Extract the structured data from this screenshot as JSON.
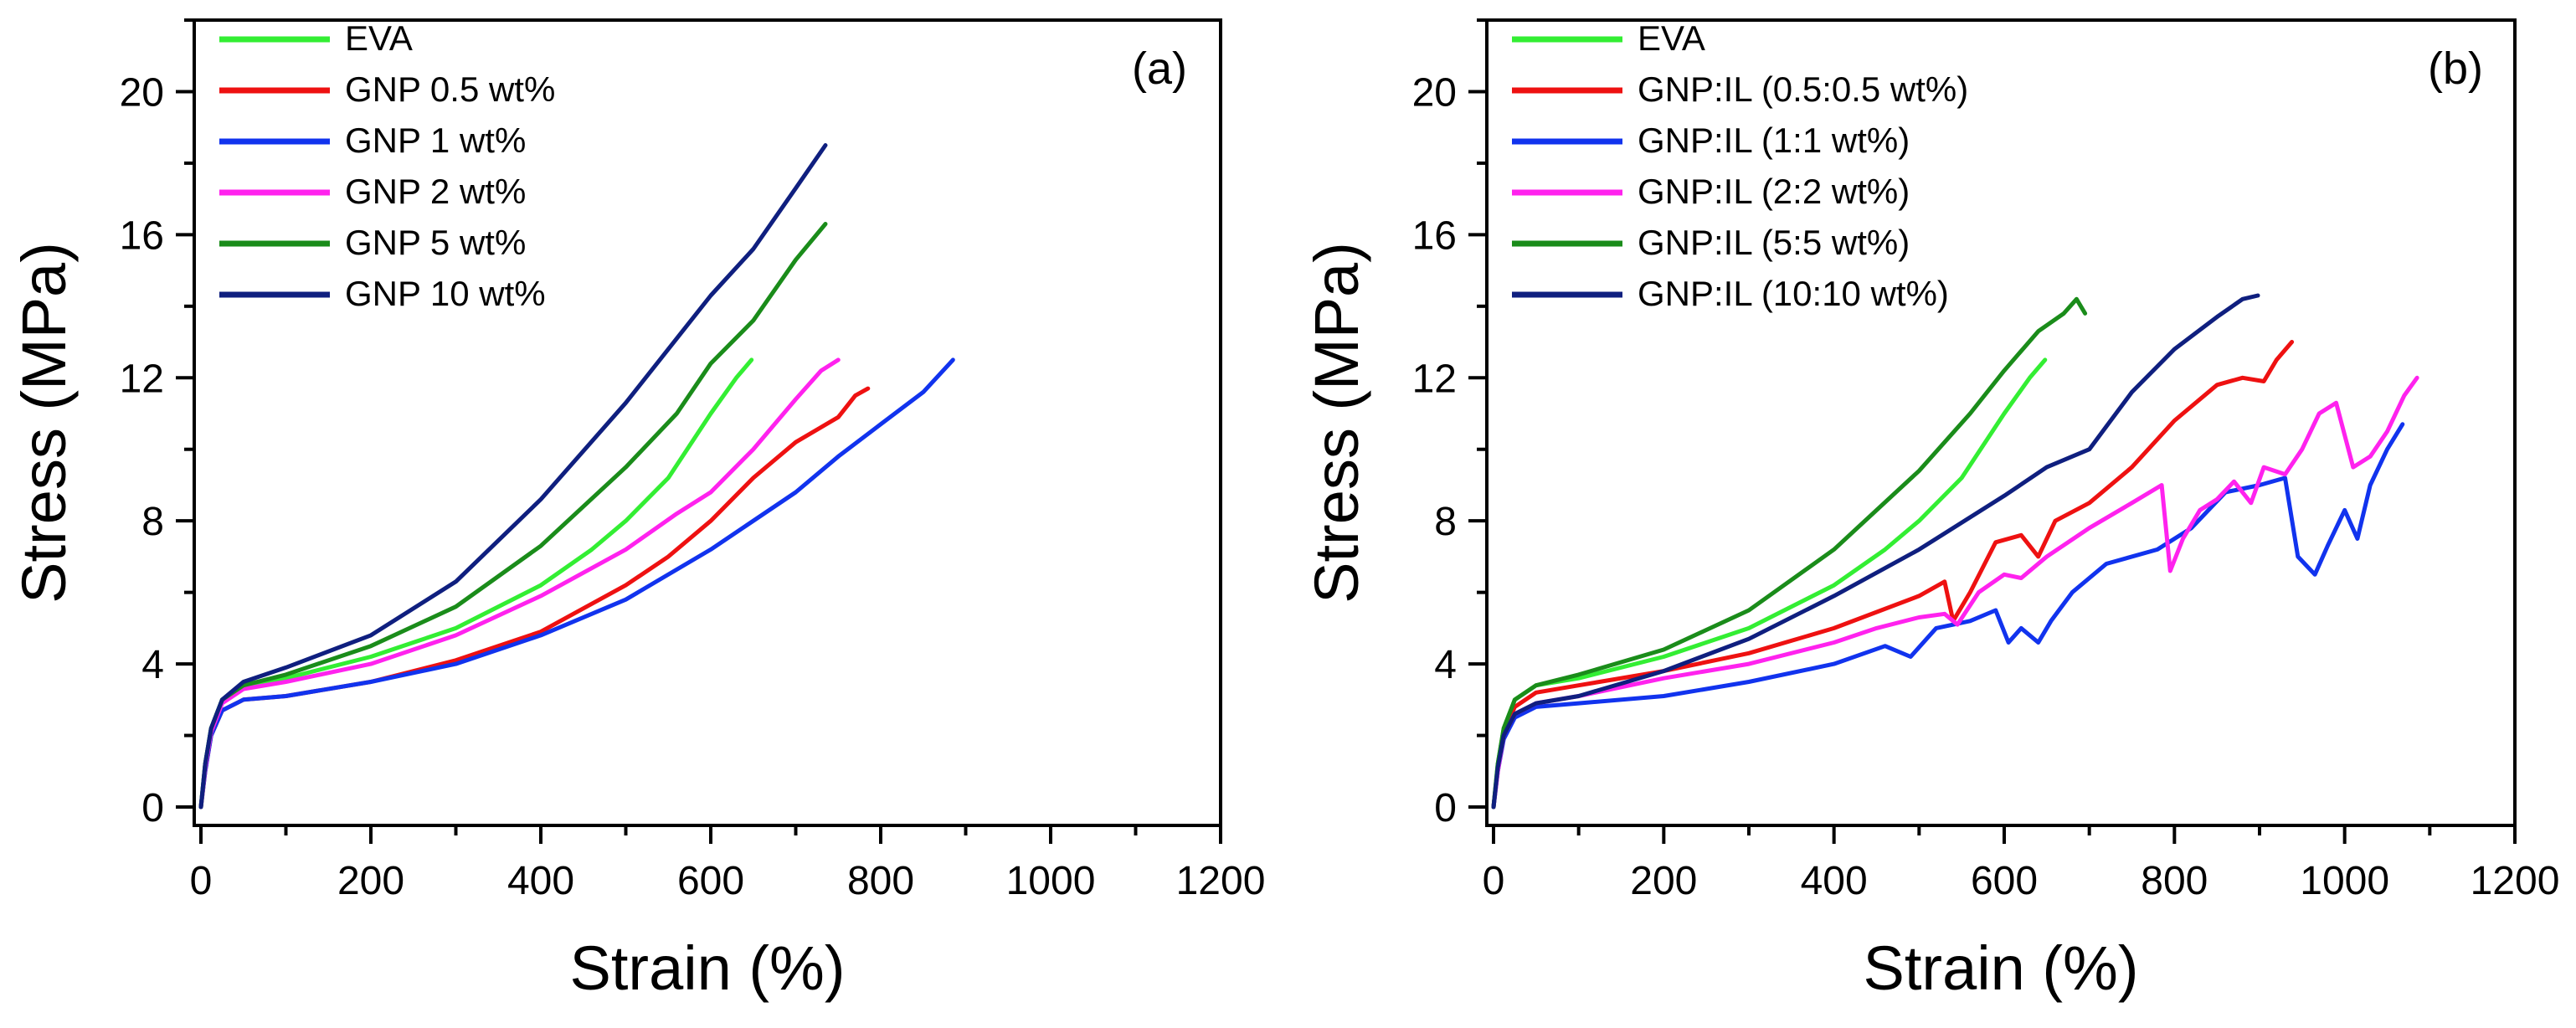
{
  "chart_data": [
    {
      "type": "line",
      "panel": "(a)",
      "xlabel": "Strain (%)",
      "ylabel": "Stress (MPa)",
      "xlim": [
        0,
        1200
      ],
      "ylim": [
        0,
        22
      ],
      "xticks": [
        0,
        200,
        400,
        600,
        800,
        1000,
        1200
      ],
      "yticks": [
        0,
        4,
        8,
        12,
        16,
        20
      ],
      "legend_position": "top-left",
      "series": [
        {
          "name": "EVA",
          "color": "#33ee33",
          "points": [
            [
              0,
              0
            ],
            [
              5,
              1.2
            ],
            [
              12,
              2.2
            ],
            [
              25,
              3.0
            ],
            [
              50,
              3.4
            ],
            [
              100,
              3.6
            ],
            [
              200,
              4.2
            ],
            [
              300,
              5.0
            ],
            [
              400,
              6.2
            ],
            [
              460,
              7.2
            ],
            [
              500,
              8.0
            ],
            [
              550,
              9.2
            ],
            [
              600,
              11.0
            ],
            [
              630,
              12.0
            ],
            [
              648,
              12.5
            ]
          ]
        },
        {
          "name": "GNP 0.5 wt%",
          "color": "#ee1111",
          "points": [
            [
              0,
              0
            ],
            [
              5,
              1.0
            ],
            [
              12,
              2.0
            ],
            [
              25,
              2.7
            ],
            [
              50,
              3.0
            ],
            [
              100,
              3.1
            ],
            [
              200,
              3.5
            ],
            [
              300,
              4.1
            ],
            [
              400,
              4.9
            ],
            [
              500,
              6.2
            ],
            [
              550,
              7.0
            ],
            [
              600,
              8.0
            ],
            [
              650,
              9.2
            ],
            [
              700,
              10.2
            ],
            [
              750,
              10.9
            ],
            [
              770,
              11.5
            ],
            [
              785,
              11.7
            ]
          ]
        },
        {
          "name": "GNP 1 wt%",
          "color": "#1133ee",
          "points": [
            [
              0,
              0
            ],
            [
              5,
              1.0
            ],
            [
              12,
              2.0
            ],
            [
              25,
              2.7
            ],
            [
              50,
              3.0
            ],
            [
              100,
              3.1
            ],
            [
              200,
              3.5
            ],
            [
              300,
              4.0
            ],
            [
              400,
              4.8
            ],
            [
              500,
              5.8
            ],
            [
              600,
              7.2
            ],
            [
              700,
              8.8
            ],
            [
              750,
              9.8
            ],
            [
              800,
              10.7
            ],
            [
              850,
              11.6
            ],
            [
              885,
              12.5
            ]
          ]
        },
        {
          "name": "GNP 2 wt%",
          "color": "#ff22ee",
          "points": [
            [
              0,
              0
            ],
            [
              5,
              1.1
            ],
            [
              12,
              2.1
            ],
            [
              25,
              2.9
            ],
            [
              50,
              3.3
            ],
            [
              100,
              3.5
            ],
            [
              200,
              4.0
            ],
            [
              300,
              4.8
            ],
            [
              400,
              5.9
            ],
            [
              500,
              7.2
            ],
            [
              560,
              8.2
            ],
            [
              600,
              8.8
            ],
            [
              650,
              10.0
            ],
            [
              700,
              11.4
            ],
            [
              730,
              12.2
            ],
            [
              750,
              12.5
            ]
          ]
        },
        {
          "name": "GNP 5 wt%",
          "color": "#1a8c1a",
          "points": [
            [
              0,
              0
            ],
            [
              5,
              1.2
            ],
            [
              12,
              2.2
            ],
            [
              25,
              3.0
            ],
            [
              50,
              3.4
            ],
            [
              100,
              3.7
            ],
            [
              200,
              4.5
            ],
            [
              300,
              5.6
            ],
            [
              400,
              7.3
            ],
            [
              500,
              9.5
            ],
            [
              560,
              11.0
            ],
            [
              600,
              12.4
            ],
            [
              650,
              13.6
            ],
            [
              700,
              15.3
            ],
            [
              735,
              16.3
            ]
          ]
        },
        {
          "name": "GNP 10 wt%",
          "color": "#0f1f7f",
          "points": [
            [
              0,
              0
            ],
            [
              5,
              1.2
            ],
            [
              12,
              2.2
            ],
            [
              25,
              3.0
            ],
            [
              50,
              3.5
            ],
            [
              100,
              3.9
            ],
            [
              200,
              4.8
            ],
            [
              300,
              6.3
            ],
            [
              400,
              8.6
            ],
            [
              500,
              11.3
            ],
            [
              600,
              14.3
            ],
            [
              650,
              15.6
            ],
            [
              700,
              17.3
            ],
            [
              735,
              18.5
            ]
          ]
        }
      ]
    },
    {
      "type": "line",
      "panel": "(b)",
      "xlabel": "Strain (%)",
      "ylabel": "Stress (MPa)",
      "xlim": [
        0,
        1200
      ],
      "ylim": [
        0,
        22
      ],
      "xticks": [
        0,
        200,
        400,
        600,
        800,
        1000,
        1200
      ],
      "yticks": [
        0,
        4,
        8,
        12,
        16,
        20
      ],
      "legend_position": "top-left",
      "series": [
        {
          "name": "EVA",
          "color": "#33ee33",
          "points": [
            [
              0,
              0
            ],
            [
              5,
              1.2
            ],
            [
              12,
              2.2
            ],
            [
              25,
              3.0
            ],
            [
              50,
              3.4
            ],
            [
              100,
              3.6
            ],
            [
              200,
              4.2
            ],
            [
              300,
              5.0
            ],
            [
              400,
              6.2
            ],
            [
              460,
              7.2
            ],
            [
              500,
              8.0
            ],
            [
              550,
              9.2
            ],
            [
              600,
              11.0
            ],
            [
              630,
              12.0
            ],
            [
              648,
              12.5
            ]
          ]
        },
        {
          "name": "GNP:IL (0.5:0.5 wt%)",
          "color": "#ee1111",
          "points": [
            [
              0,
              0
            ],
            [
              5,
              1.1
            ],
            [
              12,
              2.1
            ],
            [
              25,
              2.8
            ],
            [
              50,
              3.2
            ],
            [
              100,
              3.4
            ],
            [
              200,
              3.8
            ],
            [
              300,
              4.3
            ],
            [
              400,
              5.0
            ],
            [
              500,
              5.9
            ],
            [
              530,
              6.3
            ],
            [
              540,
              5.2
            ],
            [
              560,
              6.0
            ],
            [
              590,
              7.4
            ],
            [
              620,
              7.6
            ],
            [
              640,
              7.0
            ],
            [
              660,
              8.0
            ],
            [
              700,
              8.5
            ],
            [
              750,
              9.5
            ],
            [
              800,
              10.8
            ],
            [
              850,
              11.8
            ],
            [
              880,
              12.0
            ],
            [
              905,
              11.9
            ],
            [
              920,
              12.5
            ],
            [
              938,
              13.0
            ]
          ]
        },
        {
          "name": "GNP:IL (1:1 wt%)",
          "color": "#1133ee",
          "points": [
            [
              0,
              0
            ],
            [
              5,
              1.0
            ],
            [
              12,
              1.9
            ],
            [
              25,
              2.5
            ],
            [
              50,
              2.8
            ],
            [
              100,
              2.9
            ],
            [
              200,
              3.1
            ],
            [
              300,
              3.5
            ],
            [
              400,
              4.0
            ],
            [
              460,
              4.5
            ],
            [
              490,
              4.2
            ],
            [
              520,
              5.0
            ],
            [
              560,
              5.2
            ],
            [
              590,
              5.5
            ],
            [
              605,
              4.6
            ],
            [
              620,
              5.0
            ],
            [
              640,
              4.6
            ],
            [
              655,
              5.2
            ],
            [
              680,
              6.0
            ],
            [
              720,
              6.8
            ],
            [
              780,
              7.2
            ],
            [
              820,
              7.8
            ],
            [
              860,
              8.8
            ],
            [
              900,
              9.0
            ],
            [
              930,
              9.2
            ],
            [
              945,
              7.0
            ],
            [
              965,
              6.5
            ],
            [
              980,
              7.3
            ],
            [
              1000,
              8.3
            ],
            [
              1015,
              7.5
            ],
            [
              1030,
              9.0
            ],
            [
              1050,
              10.0
            ],
            [
              1068,
              10.7
            ]
          ]
        },
        {
          "name": "GNP:IL (2:2 wt%)",
          "color": "#ff22ee",
          "points": [
            [
              0,
              0
            ],
            [
              5,
              1.0
            ],
            [
              12,
              2.0
            ],
            [
              25,
              2.6
            ],
            [
              50,
              2.9
            ],
            [
              100,
              3.1
            ],
            [
              200,
              3.6
            ],
            [
              300,
              4.0
            ],
            [
              400,
              4.6
            ],
            [
              450,
              5.0
            ],
            [
              500,
              5.3
            ],
            [
              530,
              5.4
            ],
            [
              545,
              5.1
            ],
            [
              570,
              6.0
            ],
            [
              600,
              6.5
            ],
            [
              620,
              6.4
            ],
            [
              650,
              7.0
            ],
            [
              700,
              7.8
            ],
            [
              750,
              8.5
            ],
            [
              785,
              9.0
            ],
            [
              795,
              6.6
            ],
            [
              810,
              7.5
            ],
            [
              830,
              8.3
            ],
            [
              850,
              8.6
            ],
            [
              870,
              9.1
            ],
            [
              890,
              8.5
            ],
            [
              905,
              9.5
            ],
            [
              930,
              9.3
            ],
            [
              950,
              10.0
            ],
            [
              970,
              11.0
            ],
            [
              990,
              11.3
            ],
            [
              1010,
              9.5
            ],
            [
              1030,
              9.8
            ],
            [
              1050,
              10.5
            ],
            [
              1070,
              11.5
            ],
            [
              1085,
              12.0
            ]
          ]
        },
        {
          "name": "GNP:IL (5:5 wt%)",
          "color": "#1a8c1a",
          "points": [
            [
              0,
              0
            ],
            [
              5,
              1.2
            ],
            [
              12,
              2.2
            ],
            [
              25,
              3.0
            ],
            [
              50,
              3.4
            ],
            [
              100,
              3.7
            ],
            [
              200,
              4.4
            ],
            [
              300,
              5.5
            ],
            [
              400,
              7.2
            ],
            [
              500,
              9.4
            ],
            [
              560,
              11.0
            ],
            [
              600,
              12.2
            ],
            [
              640,
              13.3
            ],
            [
              670,
              13.8
            ],
            [
              685,
              14.2
            ],
            [
              695,
              13.8
            ]
          ]
        },
        {
          "name": "GNP:IL (10:10 wt%)",
          "color": "#0f1f7f",
          "points": [
            [
              0,
              0
            ],
            [
              5,
              1.1
            ],
            [
              12,
              2.0
            ],
            [
              25,
              2.6
            ],
            [
              50,
              2.9
            ],
            [
              100,
              3.1
            ],
            [
              200,
              3.8
            ],
            [
              300,
              4.7
            ],
            [
              400,
              5.9
            ],
            [
              500,
              7.2
            ],
            [
              600,
              8.7
            ],
            [
              650,
              9.5
            ],
            [
              700,
              10.0
            ],
            [
              750,
              11.6
            ],
            [
              800,
              12.8
            ],
            [
              850,
              13.7
            ],
            [
              880,
              14.2
            ],
            [
              898,
              14.3
            ]
          ]
        }
      ]
    }
  ]
}
